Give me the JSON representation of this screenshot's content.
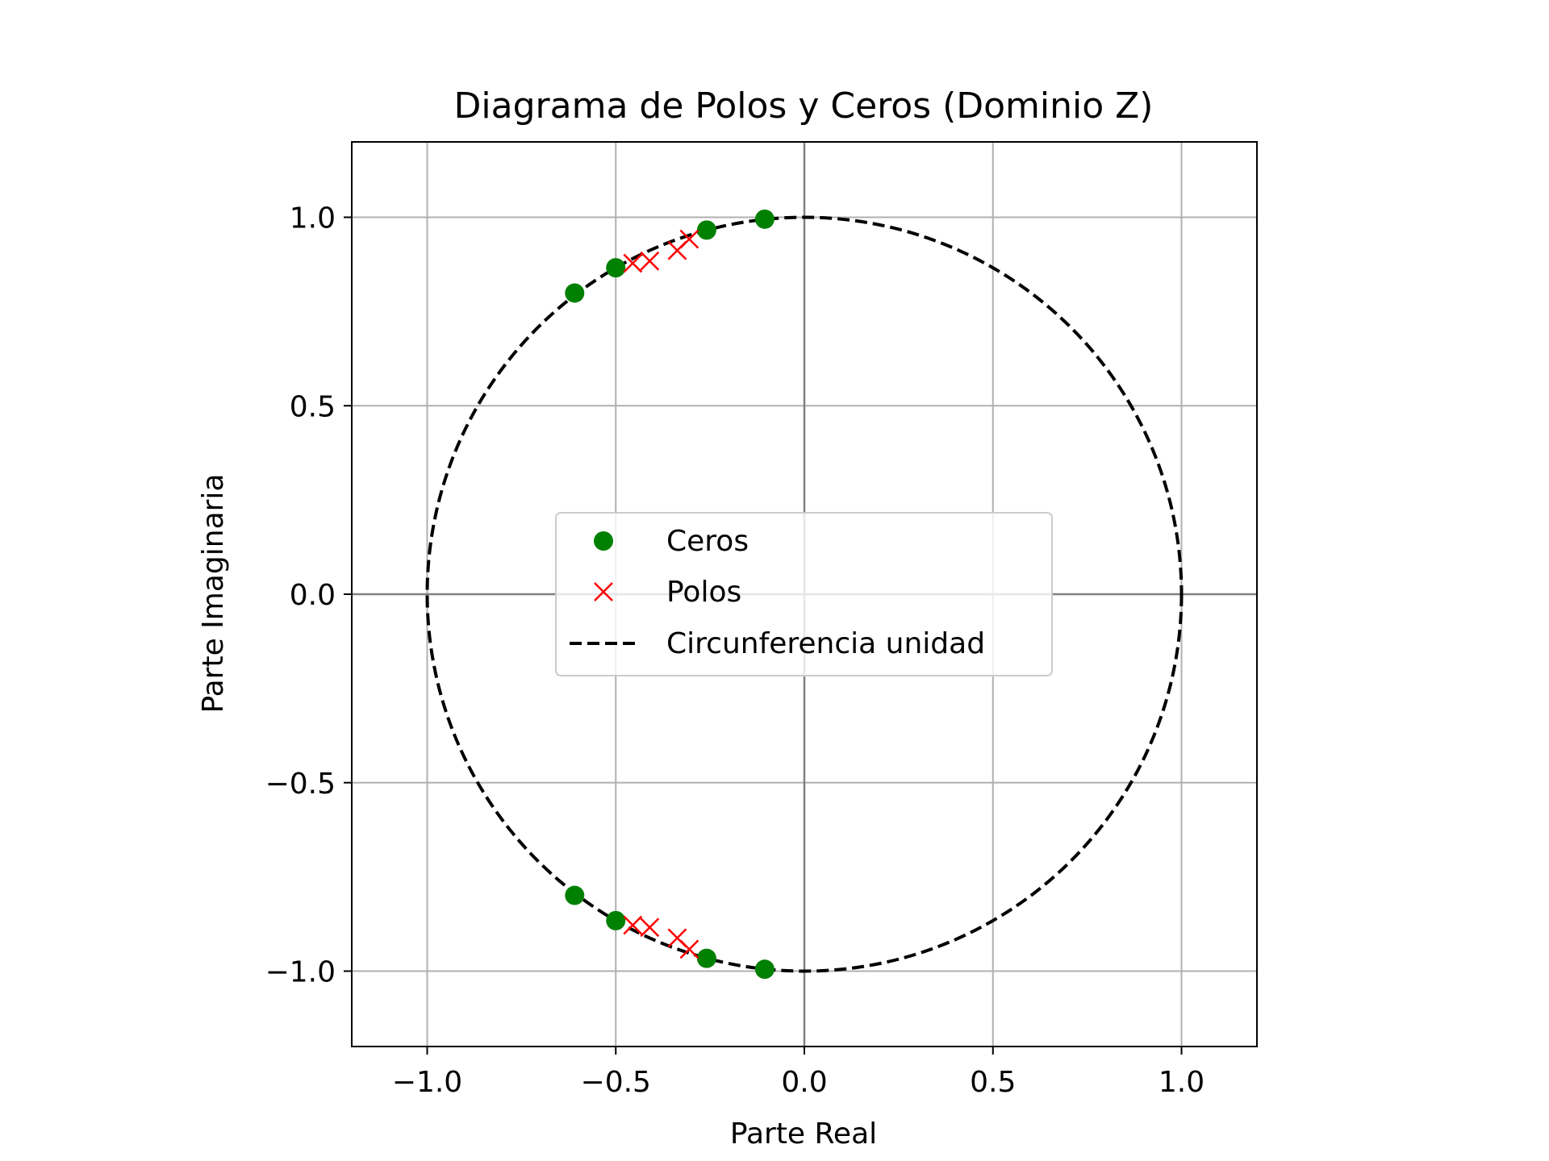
{
  "chart_data": {
    "type": "scatter",
    "title": "Diagrama de Polos y Ceros (Dominio Z)",
    "xlabel": "Parte Real",
    "ylabel": "Parte Imaginaria",
    "xlim": [
      -1.2,
      1.2
    ],
    "ylim": [
      -1.2,
      1.2
    ],
    "x_ticks": [
      -1.0,
      -0.5,
      0.0,
      0.5,
      1.0
    ],
    "y_ticks": [
      -1.0,
      -0.5,
      0.0,
      0.5,
      1.0
    ],
    "x_tick_labels": [
      "−1.0",
      "−0.5",
      "0.0",
      "0.5",
      "1.0"
    ],
    "y_tick_labels": [
      "−1.0",
      "−0.5",
      "0.0",
      "0.5",
      "1.0"
    ],
    "grid": true,
    "aspect": "equal",
    "legend_position": "center",
    "series": [
      {
        "name": "Ceros",
        "marker": "circle",
        "color": "#008000",
        "points": [
          {
            "x": -0.105,
            "y": 0.995
          },
          {
            "x": -0.259,
            "y": 0.966
          },
          {
            "x": -0.5,
            "y": 0.866
          },
          {
            "x": -0.609,
            "y": 0.799
          },
          {
            "x": -0.105,
            "y": -0.995
          },
          {
            "x": -0.259,
            "y": -0.966
          },
          {
            "x": -0.5,
            "y": -0.866
          },
          {
            "x": -0.609,
            "y": -0.799
          }
        ]
      },
      {
        "name": "Polos",
        "marker": "x",
        "color": "#ff0000",
        "points": [
          {
            "x": -0.305,
            "y": 0.942
          },
          {
            "x": -0.337,
            "y": 0.912
          },
          {
            "x": -0.41,
            "y": 0.884
          },
          {
            "x": -0.455,
            "y": 0.878
          },
          {
            "x": -0.305,
            "y": -0.942
          },
          {
            "x": -0.337,
            "y": -0.912
          },
          {
            "x": -0.41,
            "y": -0.884
          },
          {
            "x": -0.455,
            "y": -0.878
          }
        ]
      },
      {
        "name": "Circunferencia unidad",
        "marker": "dashed-line",
        "color": "#000000",
        "shape": "circle",
        "center": [
          0,
          0
        ],
        "radius": 1
      }
    ],
    "reference_lines": {
      "x": 0,
      "y": 0,
      "color": "#808080"
    },
    "grid_color": "#b0b0b0"
  }
}
